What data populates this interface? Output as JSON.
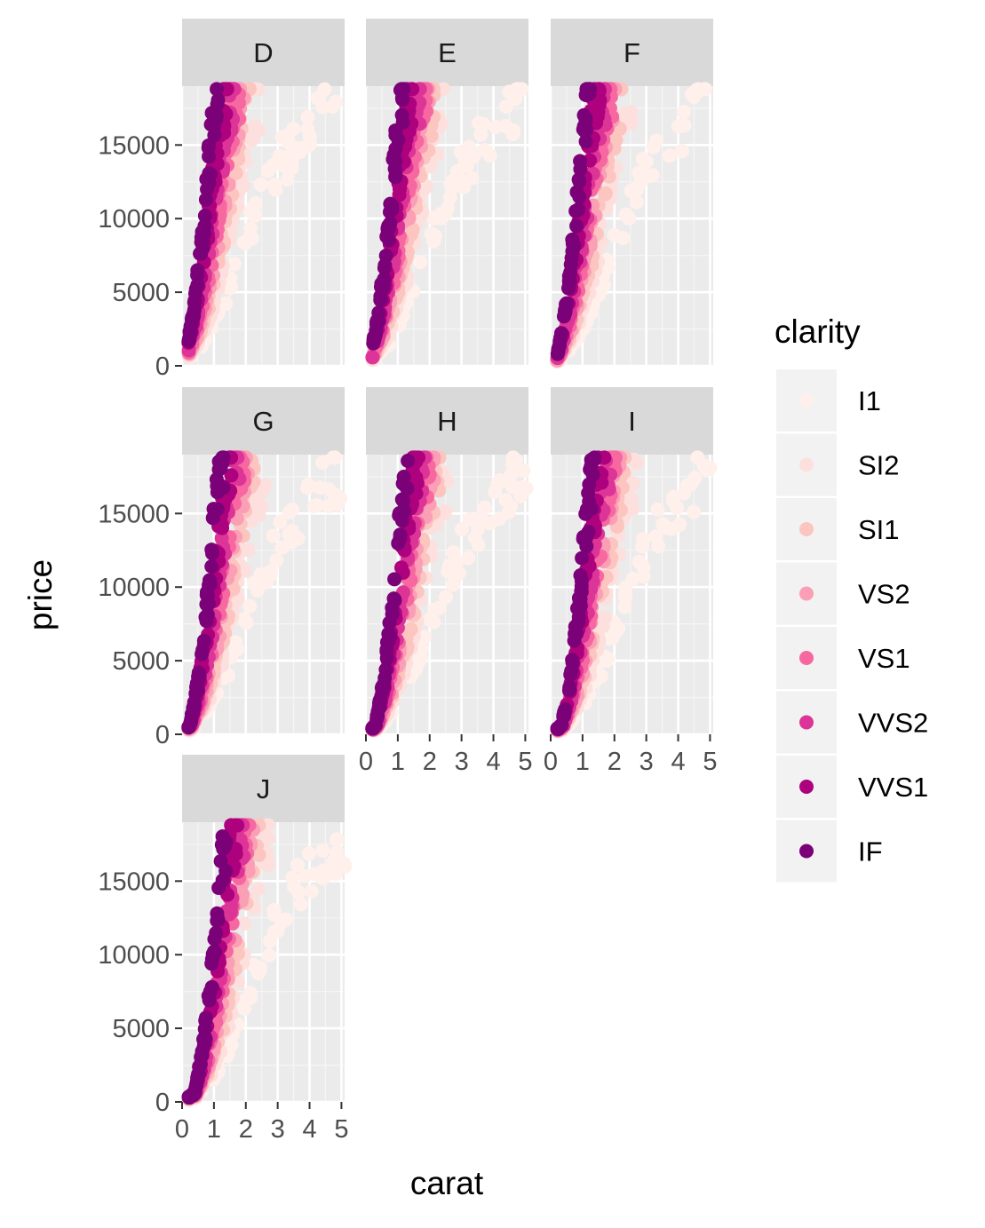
{
  "chart_data": {
    "type": "scatter",
    "facet_by": "color",
    "facets": [
      "D",
      "E",
      "F",
      "G",
      "H",
      "I",
      "J"
    ],
    "xlabel": "carat",
    "ylabel": "price",
    "xlim": [
      0,
      5.1
    ],
    "ylim": [
      0,
      19000
    ],
    "x_ticks": [
      0,
      1,
      2,
      3,
      4,
      5
    ],
    "y_ticks": [
      0,
      5000,
      10000,
      15000
    ],
    "grid": true,
    "legend": {
      "title": "clarity",
      "placement": "right",
      "entries": [
        {
          "label": "I1",
          "color": "#fff0ec"
        },
        {
          "label": "SI2",
          "color": "#fde0dd"
        },
        {
          "label": "SI1",
          "color": "#fcc5c0"
        },
        {
          "label": "VS2",
          "color": "#fa9fb5"
        },
        {
          "label": "VS1",
          "color": "#f768a1"
        },
        {
          "label": "VVS2",
          "color": "#dd3497"
        },
        {
          "label": "VVS1",
          "color": "#ae017e"
        },
        {
          "label": "IF",
          "color": "#7a0177"
        }
      ]
    },
    "series_trends": [
      {
        "name": "I1",
        "points": [
          [
            0.3,
            300
          ],
          [
            0.8,
            1500
          ],
          [
            1.5,
            4500
          ],
          [
            2.2,
            9000
          ],
          [
            3.0,
            13000
          ],
          [
            4.0,
            16000
          ],
          [
            5.0,
            18000
          ]
        ]
      },
      {
        "name": "SI2",
        "points": [
          [
            0.3,
            400
          ],
          [
            0.8,
            2200
          ],
          [
            1.3,
            5500
          ],
          [
            1.8,
            11000
          ],
          [
            2.2,
            15000
          ],
          [
            2.6,
            18500
          ]
        ]
      },
      {
        "name": "SI1",
        "points": [
          [
            0.3,
            450
          ],
          [
            0.7,
            2300
          ],
          [
            1.2,
            6000
          ],
          [
            1.6,
            11000
          ],
          [
            2.0,
            16000
          ],
          [
            2.3,
            18700
          ]
        ]
      },
      {
        "name": "VS2",
        "points": [
          [
            0.3,
            500
          ],
          [
            0.7,
            2600
          ],
          [
            1.1,
            6500
          ],
          [
            1.5,
            12000
          ],
          [
            1.8,
            16500
          ],
          [
            2.1,
            18700
          ]
        ]
      },
      {
        "name": "VS1",
        "points": [
          [
            0.3,
            550
          ],
          [
            0.6,
            2500
          ],
          [
            1.0,
            6500
          ],
          [
            1.4,
            12500
          ],
          [
            1.7,
            17000
          ],
          [
            2.0,
            18800
          ]
        ]
      },
      {
        "name": "VVS2",
        "points": [
          [
            0.3,
            600
          ],
          [
            0.6,
            3000
          ],
          [
            1.0,
            8000
          ],
          [
            1.3,
            13000
          ],
          [
            1.6,
            17500
          ],
          [
            1.8,
            18800
          ]
        ]
      },
      {
        "name": "VVS1",
        "points": [
          [
            0.25,
            600
          ],
          [
            0.5,
            3000
          ],
          [
            0.9,
            8500
          ],
          [
            1.2,
            14000
          ],
          [
            1.4,
            17500
          ],
          [
            1.6,
            18800
          ]
        ]
      },
      {
        "name": "IF",
        "points": [
          [
            0.25,
            600
          ],
          [
            0.5,
            3500
          ],
          [
            0.8,
            9000
          ],
          [
            1.0,
            14000
          ],
          [
            1.2,
            17500
          ],
          [
            1.3,
            18800
          ]
        ]
      }
    ]
  }
}
